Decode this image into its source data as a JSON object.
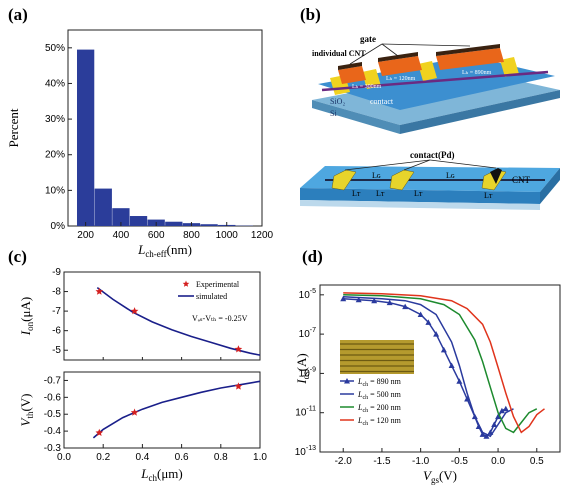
{
  "panels": {
    "a": {
      "label": "(a)"
    },
    "b": {
      "label": "(b)",
      "texts": {
        "gate": "gate",
        "cnt": "individual CNT",
        "sio2": "SiO₂",
        "si": "Si",
        "contact": "contact",
        "lch1": "Lₕ = 120nm",
        "lch2": "Lₕ = 300nm",
        "lch3": "Lₕ = 890nm",
        "contact_pd": "contact(Pd)",
        "cnt2": "CNT",
        "lg": "Lɢ",
        "lt": "Lᴛ"
      }
    },
    "c": {
      "label": "(c)"
    },
    "d": {
      "label": "(d)"
    }
  },
  "chart_data": [
    {
      "id": "a",
      "type": "bar",
      "xlabel": "L",
      "xlabel_sub": "ch-eff",
      "xlabel_unit": "(nm)",
      "ylabel": "Percent",
      "categories": [
        200,
        300,
        400,
        500,
        600,
        700,
        800,
        900,
        1000,
        1100
      ],
      "values": [
        49.5,
        10.5,
        5.0,
        2.8,
        1.8,
        1.2,
        0.8,
        0.5,
        0.3,
        0.1
      ],
      "xlim": [
        100,
        1200
      ],
      "ylim": [
        0,
        55
      ],
      "xticks": [
        200,
        400,
        600,
        800,
        1000,
        1200
      ],
      "yticks": [
        0,
        10,
        20,
        30,
        40,
        50
      ],
      "ytick_labels": [
        "0%",
        "10%",
        "20%",
        "30%",
        "40%",
        "50%"
      ],
      "bar_color": "#2b3d9a"
    },
    {
      "id": "c-top",
      "type": "line",
      "ylabel": "I",
      "ylabel_sub": "on",
      "ylabel_unit": "(μA)",
      "ylim": [
        -4.5,
        -9
      ],
      "xlim": [
        0,
        1
      ],
      "yticks": [
        -9,
        -8,
        -7,
        -6,
        -5
      ],
      "ytick_labels": [
        "-9",
        "-8",
        "-7",
        "-6",
        "-5"
      ],
      "legend": [
        "Experimental",
        "simulated"
      ],
      "annotation": "Vₔₛ-Vₜₕ = -0.25V",
      "experimental": {
        "x": [
          0.18,
          0.36,
          0.89
        ],
        "y": [
          -8.0,
          -7.0,
          -5.05
        ]
      },
      "simulated": {
        "x": [
          0.17,
          0.25,
          0.35,
          0.45,
          0.55,
          0.65,
          0.75,
          0.85,
          0.95,
          1.0
        ],
        "y": [
          -8.2,
          -7.6,
          -6.95,
          -6.45,
          -6.05,
          -5.7,
          -5.4,
          -5.1,
          -4.85,
          -4.75
        ]
      },
      "colors": {
        "experimental": "#d42020",
        "simulated": "#1a1f8a"
      }
    },
    {
      "id": "c-bottom",
      "type": "line",
      "xlabel": "L",
      "xlabel_sub": "ch",
      "xlabel_unit": "(μm)",
      "ylabel": "V",
      "ylabel_sub": "th",
      "ylabel_unit": "(V)",
      "xlim": [
        0,
        1
      ],
      "ylim": [
        -0.3,
        -0.75
      ],
      "xticks": [
        0.0,
        0.2,
        0.4,
        0.6,
        0.8,
        1.0
      ],
      "xtick_labels": [
        "0.0",
        "0.2",
        "0.4",
        "0.6",
        "0.8",
        "1.0"
      ],
      "yticks": [
        -0.3,
        -0.4,
        -0.5,
        -0.6,
        -0.7
      ],
      "ytick_labels": [
        "-0.3",
        "-0.4",
        "-0.5",
        "-0.6",
        "-0.7"
      ],
      "experimental": {
        "x": [
          0.18,
          0.36,
          0.89
        ],
        "y": [
          -0.39,
          -0.51,
          -0.665
        ]
      },
      "simulated": {
        "x": [
          0.15,
          0.2,
          0.3,
          0.4,
          0.5,
          0.6,
          0.7,
          0.8,
          0.9,
          1.0
        ],
        "y": [
          -0.36,
          -0.41,
          -0.48,
          -0.53,
          -0.57,
          -0.6,
          -0.63,
          -0.655,
          -0.675,
          -0.695
        ]
      }
    },
    {
      "id": "d",
      "type": "line",
      "xlabel": "V",
      "xlabel_sub": "gs",
      "xlabel_unit": "(V)",
      "ylabel": "I",
      "ylabel_sub": "ds",
      "ylabel_unit": "(A)",
      "log_y": true,
      "xlim": [
        -2.3,
        0.8
      ],
      "ylim_exp": [
        -13,
        -4.5
      ],
      "xticks": [
        -2.0,
        -1.5,
        -1.0,
        -0.5,
        0.0,
        0.5
      ],
      "xtick_labels": [
        "-2.0",
        "-1.5",
        "-1.0",
        "-0.5",
        "0.0",
        "0.5"
      ],
      "yticks_exp": [
        -13,
        -11,
        -9,
        -7,
        -5
      ],
      "series": [
        {
          "name": "Lₚₕ = 890 nm",
          "label_L": "L",
          "label_sub": "ch",
          "label_val": " = 890 nm",
          "color": "#2a3a9e",
          "marker": "triangle",
          "x": [
            -2.0,
            -1.8,
            -1.6,
            -1.4,
            -1.2,
            -1.0,
            -0.9,
            -0.8,
            -0.7,
            -0.6,
            -0.5,
            -0.4,
            -0.3,
            -0.25,
            -0.2,
            -0.15,
            -0.1,
            -0.05,
            0.0,
            0.05,
            0.1
          ],
          "y": [
            -5.2,
            -5.25,
            -5.3,
            -5.4,
            -5.6,
            -6.0,
            -6.4,
            -7.0,
            -7.8,
            -8.6,
            -9.4,
            -10.3,
            -11.2,
            -11.7,
            -12.1,
            -12.2,
            -12.0,
            -11.6,
            -11.2,
            -10.9,
            -10.8
          ]
        },
        {
          "name": "Lₚₕ = 500 nm",
          "label_L": "L",
          "label_sub": "ch",
          "label_val": " = 500 nm",
          "color": "#2a3a9e",
          "marker": "none",
          "x": [
            -2.0,
            -1.5,
            -1.2,
            -1.0,
            -0.8,
            -0.6,
            -0.5,
            -0.4,
            -0.3,
            -0.2,
            -0.1,
            0.0,
            0.1,
            0.2
          ],
          "y": [
            -5.1,
            -5.2,
            -5.3,
            -5.5,
            -6.0,
            -7.4,
            -8.6,
            -10.0,
            -11.2,
            -12.0,
            -12.2,
            -11.6,
            -11.0,
            -10.8
          ]
        },
        {
          "name": "Lₚₕ = 200 nm",
          "label_L": "L",
          "label_sub": "ch",
          "label_val": " = 200 nm",
          "color": "#1d8a2e",
          "marker": "none",
          "x": [
            -2.0,
            -1.5,
            -1.0,
            -0.7,
            -0.5,
            -0.3,
            -0.2,
            -0.1,
            0.0,
            0.1,
            0.2,
            0.3,
            0.4,
            0.5
          ],
          "y": [
            -5.0,
            -5.05,
            -5.2,
            -5.5,
            -6.0,
            -7.3,
            -8.4,
            -9.7,
            -11.0,
            -11.8,
            -12.0,
            -11.5,
            -11.0,
            -10.8
          ]
        },
        {
          "name": "Lₚₕ = 120 nm",
          "label_L": "L",
          "label_sub": "ch",
          "label_val": " = 120 nm",
          "color": "#e0341c",
          "marker": "none",
          "x": [
            -2.0,
            -1.5,
            -1.0,
            -0.6,
            -0.4,
            -0.2,
            -0.1,
            0.0,
            0.1,
            0.2,
            0.3,
            0.4,
            0.5,
            0.6
          ],
          "y": [
            -4.9,
            -4.95,
            -5.05,
            -5.3,
            -5.7,
            -6.5,
            -7.4,
            -8.7,
            -10.0,
            -11.2,
            -12.0,
            -11.7,
            -11.1,
            -10.8
          ]
        }
      ]
    }
  ]
}
